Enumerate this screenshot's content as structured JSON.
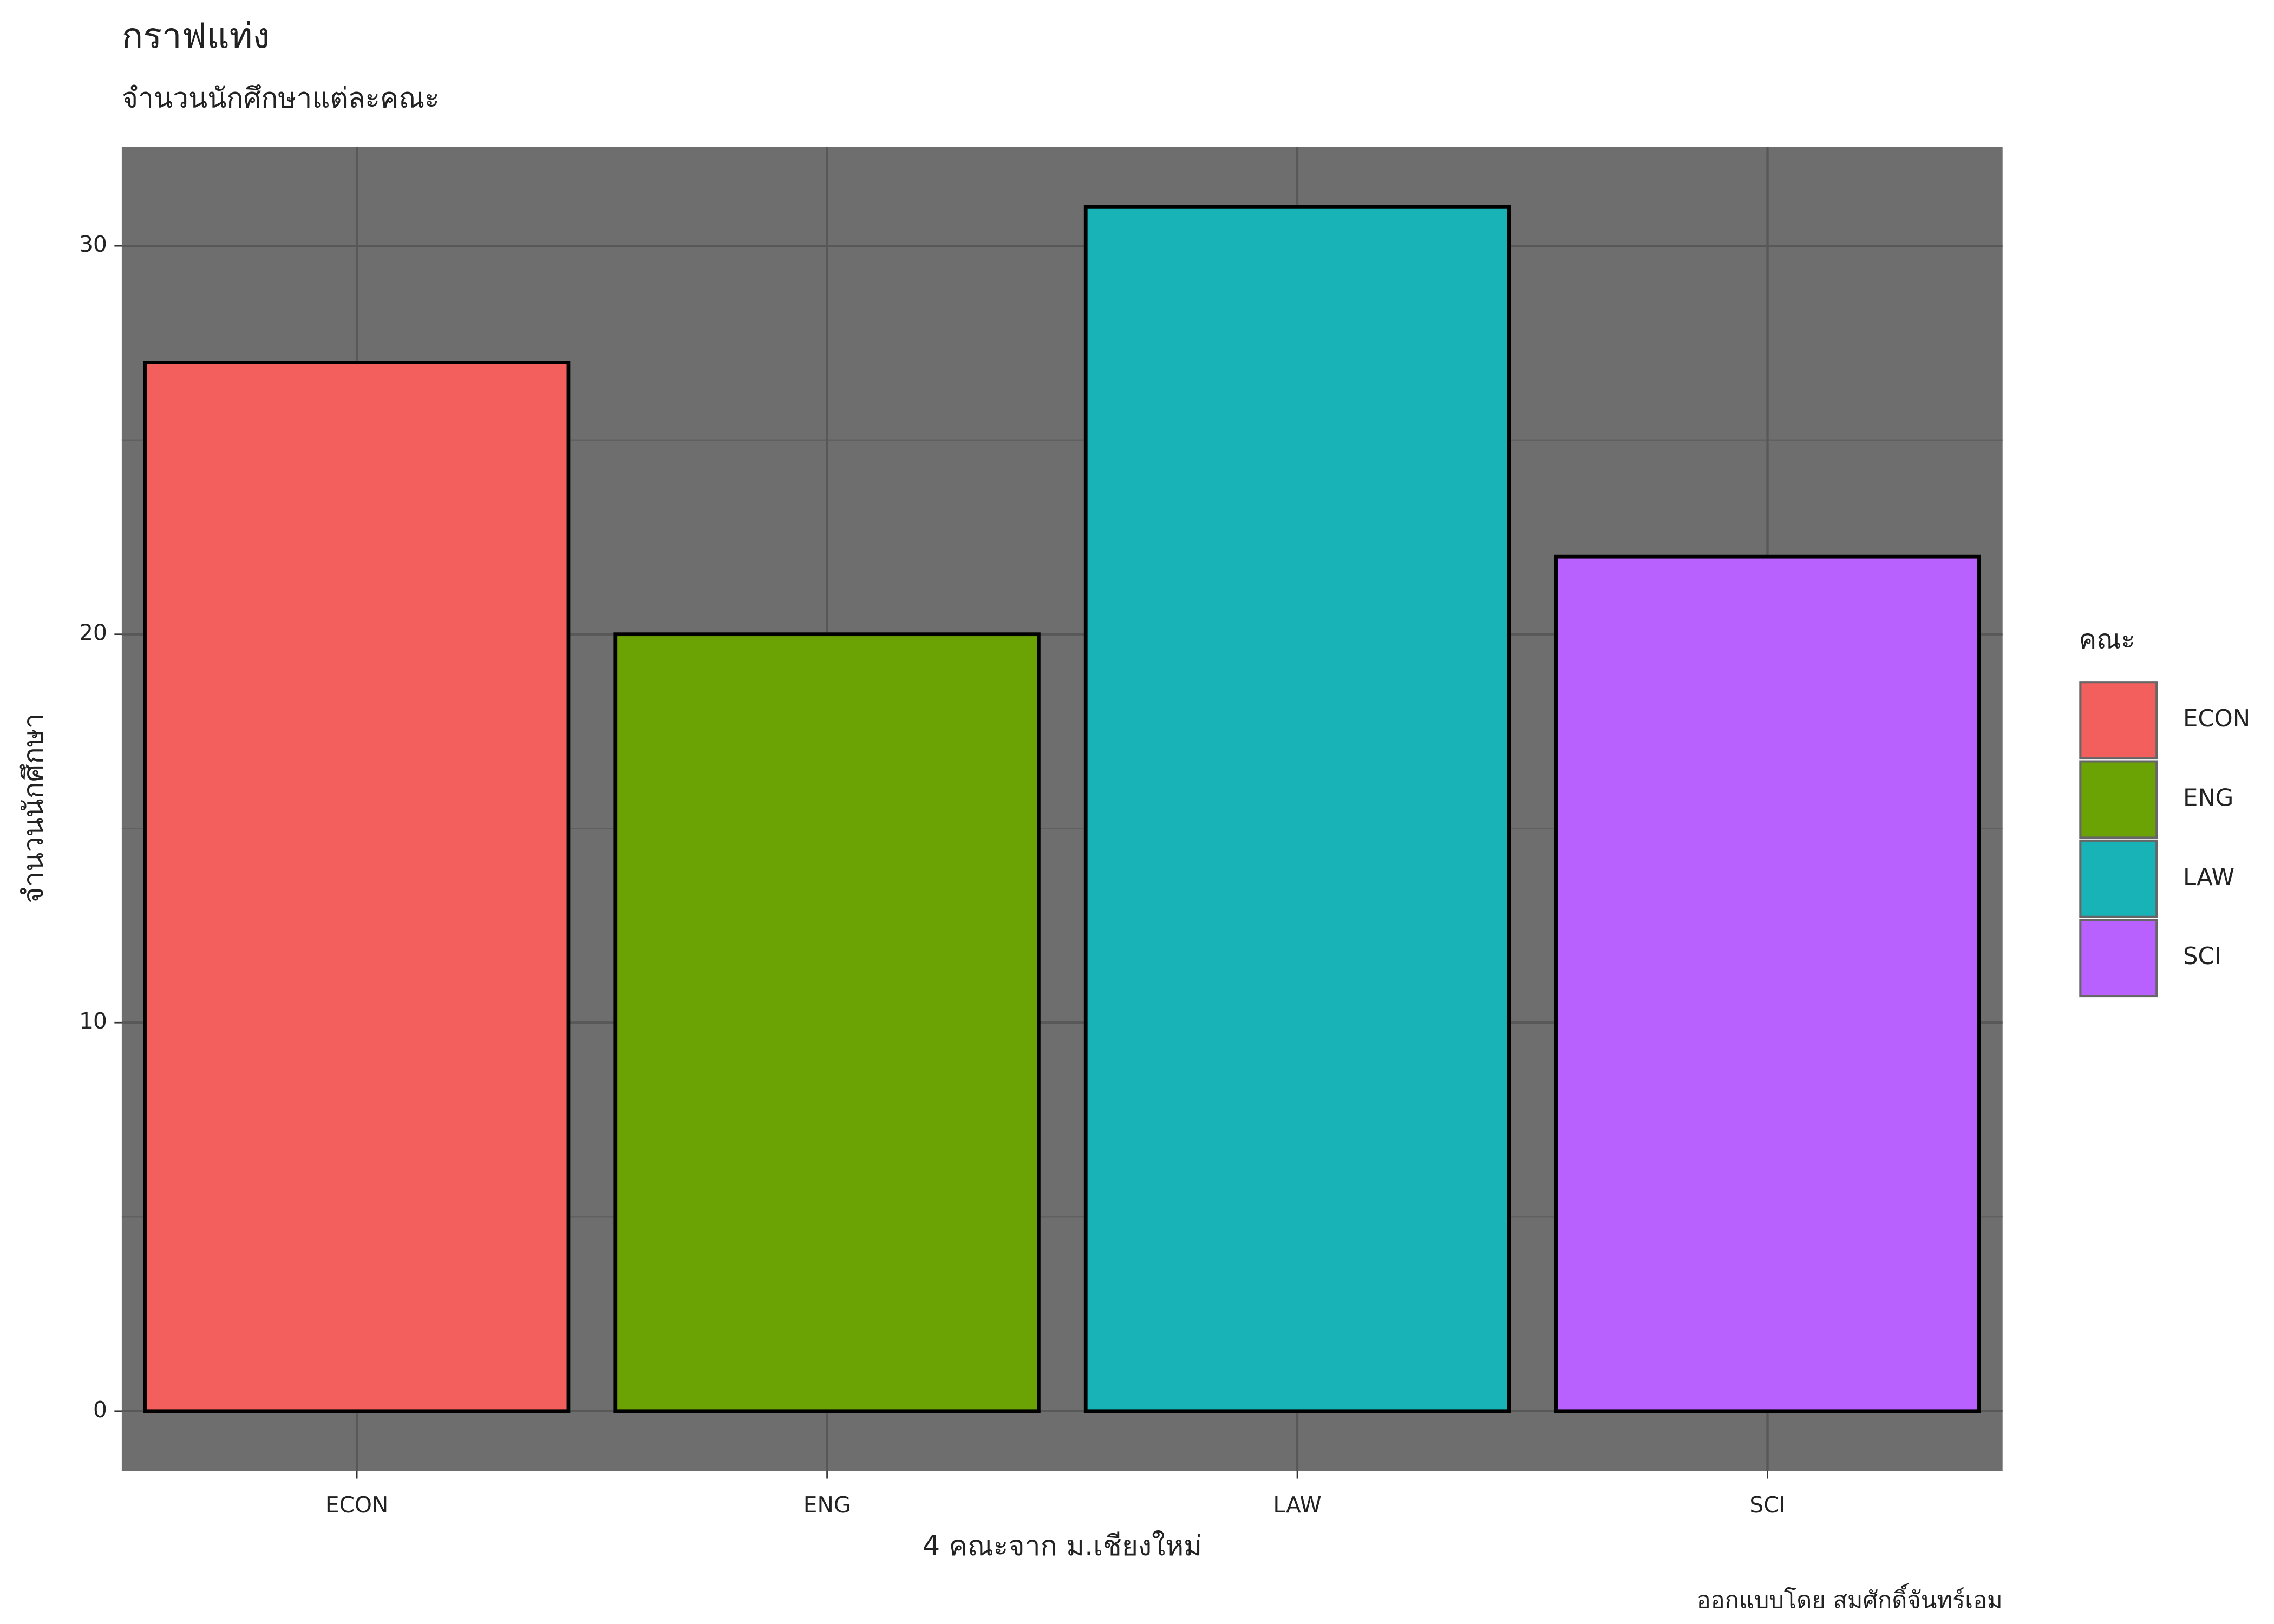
{
  "chart_data": {
    "type": "bar",
    "title": "กราฟแท่ง",
    "subtitle": "จำนวนนักศึกษาแต่ละคณะ",
    "x_label": "4 คณะจาก ม.เชียงใหม่",
    "y_label": "จำนวนนักศึกษา",
    "caption": "ออกแบบโดย สมศักดิ์จันทร์เอม",
    "legend_title": "คณะ",
    "legend_position": "right",
    "categories": [
      "ECON",
      "ENG",
      "LAW",
      "SCI"
    ],
    "values": [
      27,
      20,
      31,
      22
    ],
    "colors": [
      "#f25f5c",
      "#6ba304",
      "#18b3b7",
      "#b961ff"
    ],
    "ylim": [
      -1.55,
      32.55
    ],
    "yticks": [
      0,
      10,
      20,
      30
    ],
    "yticks_minor": [
      5,
      15,
      25
    ],
    "grid": true
  }
}
